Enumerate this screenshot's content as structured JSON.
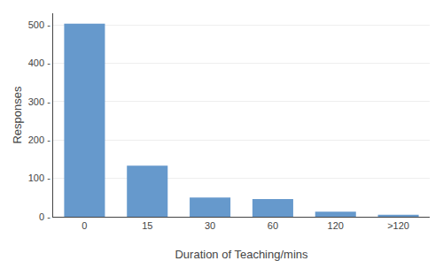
{
  "chart_data": {
    "type": "bar",
    "categories": [
      "0",
      "15",
      "30",
      "60",
      "120",
      ">120"
    ],
    "values": [
      503,
      133,
      50,
      46,
      13,
      5
    ],
    "color": "#6699cc",
    "xlabel": "Duration of Teaching/mins",
    "ylabel": "Responses",
    "ylim": [
      0,
      530
    ],
    "yticks": [
      {
        "value": 0,
        "label": "0 -"
      },
      {
        "value": 100,
        "label": "100 -"
      },
      {
        "value": 200,
        "label": "200 -"
      },
      {
        "value": 300,
        "label": "300 -"
      },
      {
        "value": 400,
        "label": "400 -"
      },
      {
        "value": 500,
        "label": "500 -"
      }
    ],
    "grid": true
  }
}
